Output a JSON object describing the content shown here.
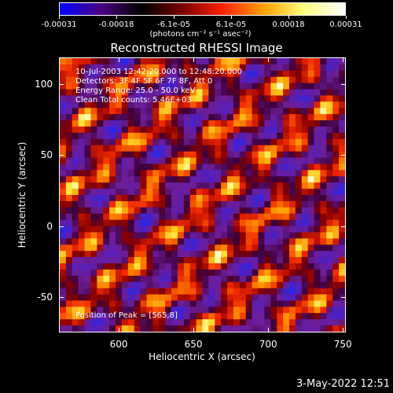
{
  "colorbar": {
    "labels": [
      "-0.00031",
      "-0.00018",
      "-6.1e-05",
      "6.1e-05",
      "0.00018",
      "0.00031"
    ],
    "units": "(photons cm⁻² s⁻¹ asec⁻²)",
    "colors": [
      "#0000ff",
      "#4b0082",
      "#000000",
      "#7a0000",
      "#ff2000",
      "#ffa000",
      "#ffff80",
      "#ffffff"
    ]
  },
  "image": {
    "title": "Reconstructed RHESSI Image",
    "annotations": [
      "10-Jul-2003 12:42:20.000 to 12:48:20.000",
      "Detectors: 3F 4F 5F 6F 7F 8F, Att 0",
      "Energy Range: 25.0 - 50.0 keV",
      "Clean     Total counts: 5.46E+03"
    ],
    "peak_text": "Position of Peak = [565,8]"
  },
  "axes": {
    "xlabel": "Heliocentric X (arcsec)",
    "ylabel": "Heliocentric Y (arcsec)",
    "xticks": [
      "600",
      "650",
      "700",
      "750"
    ],
    "yticks": [
      "100",
      "50",
      "0",
      "-50"
    ],
    "xlim": [
      560,
      752
    ],
    "ylim": [
      -75,
      119
    ]
  },
  "footer": {
    "timestamp": "3-May-2022 12:51"
  }
}
